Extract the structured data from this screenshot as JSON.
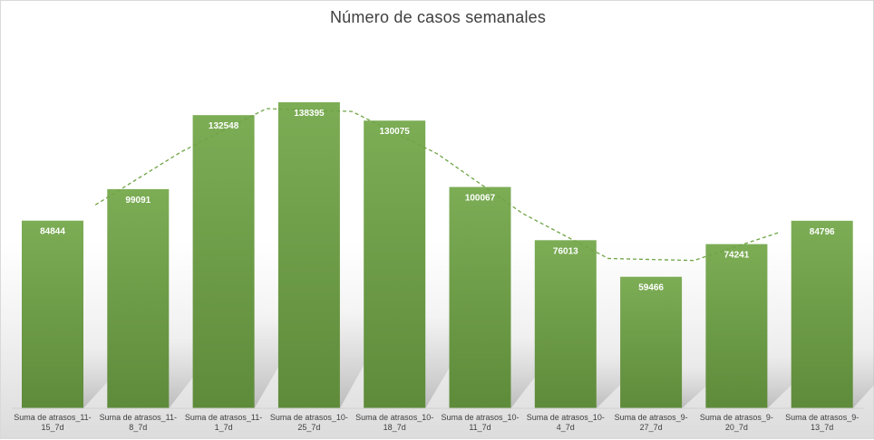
{
  "chart_data": {
    "type": "bar",
    "title": "Número de casos semanales",
    "categories": [
      "Suma de atrasos_11-15_7d",
      "Suma de atrasos_11-8_7d",
      "Suma de atrasos_11-1_7d",
      "Suma de atrasos_10-25_7d",
      "Suma de atrasos_10-18_7d",
      "Suma de atrasos_10-11_7d",
      "Suma de atrasos_10-4_7d",
      "Suma de atrasos_9-27_7d",
      "Suma de atrasos_9-20_7d",
      "Suma de atrasos_9-13_7d"
    ],
    "category_lines": [
      [
        "Suma de atrasos_11-",
        "15_7d"
      ],
      [
        "Suma de atrasos_11-",
        "8_7d"
      ],
      [
        "Suma de atrasos_11-",
        "1_7d"
      ],
      [
        "Suma de atrasos_10-",
        "25_7d"
      ],
      [
        "Suma de atrasos_10-",
        "18_7d"
      ],
      [
        "Suma de atrasos_10-",
        "11_7d"
      ],
      [
        "Suma de atrasos_10-",
        "4_7d"
      ],
      [
        "Suma de atrasos_9-",
        "27_7d"
      ],
      [
        "Suma de atrasos_9-",
        "20_7d"
      ],
      [
        "Suma de atrasos_9-",
        "13_7d"
      ]
    ],
    "values": [
      84844,
      99091,
      132548,
      138395,
      130075,
      100067,
      76013,
      59466,
      74241,
      84796
    ],
    "value_labels": [
      "84844",
      "99091",
      "132548",
      "138395",
      "130075",
      "100067",
      "76013",
      "59466",
      "74241",
      "84796"
    ],
    "trendline": {
      "type": "moving-average",
      "period": 2,
      "style": "dashed"
    },
    "ylim": [
      0,
      158000
    ],
    "grid": false,
    "legend": "none",
    "colors": {
      "bar_top": "#7cad55",
      "bar_bottom": "#5e8b3a",
      "trendline": "#6fa446",
      "value_label": "#ffffff",
      "title": "#404040",
      "axis_label": "#404040"
    }
  }
}
